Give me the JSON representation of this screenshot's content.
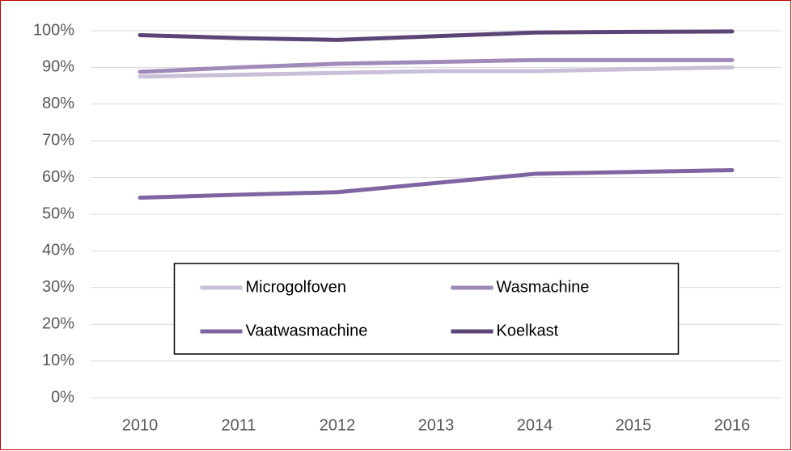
{
  "chart_data": {
    "type": "line",
    "categories": [
      "2010",
      "2011",
      "2012",
      "2013",
      "2014",
      "2015",
      "2016"
    ],
    "series": [
      {
        "name": "Microgolfoven",
        "color": "#c9bfd8",
        "values": [
          87.5,
          88,
          88.5,
          89,
          89,
          89.5,
          90
        ]
      },
      {
        "name": "Wasmachine",
        "color": "#9f8ab9",
        "values": [
          88.8,
          90,
          91,
          91.5,
          92,
          92,
          92
        ]
      },
      {
        "name": "Vaatwasmachine",
        "color": "#7e64a0",
        "values": [
          54.5,
          55.3,
          56,
          58.5,
          61,
          61.5,
          62
        ]
      },
      {
        "name": "Koelkast",
        "color": "#5b4577",
        "values": [
          98.8,
          98,
          97.5,
          98.5,
          99.5,
          99.7,
          99.8
        ]
      }
    ],
    "ylim": [
      0,
      100
    ],
    "yticks": [
      {
        "value": 0,
        "label": "0%"
      },
      {
        "value": 10,
        "label": "10%"
      },
      {
        "value": 20,
        "label": "20%"
      },
      {
        "value": 30,
        "label": "30%"
      },
      {
        "value": 40,
        "label": "40%"
      },
      {
        "value": 50,
        "label": "50%"
      },
      {
        "value": 60,
        "label": "60%"
      },
      {
        "value": 70,
        "label": "70%"
      },
      {
        "value": 80,
        "label": "80%"
      },
      {
        "value": 90,
        "label": "90%"
      },
      {
        "value": 100,
        "label": "100%"
      }
    ],
    "grid": true,
    "legend_position": "center"
  }
}
